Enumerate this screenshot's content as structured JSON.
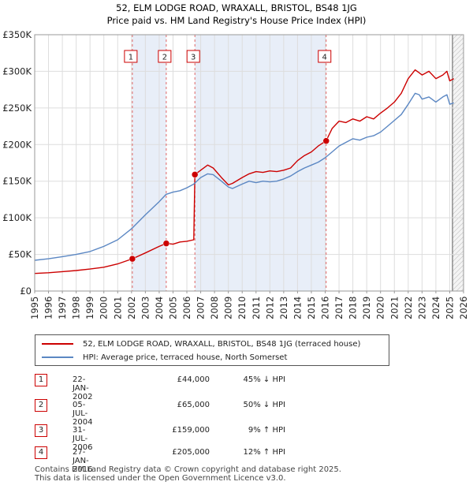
{
  "chart_data": {
    "type": "line",
    "title": "52, ELM LODGE ROAD, WRAXALL, BRISTOL, BS48 1JG",
    "subtitle": "Price paid vs. HM Land Registry's House Price Index (HPI)",
    "xlim": [
      1995,
      2026
    ],
    "ylim": [
      0,
      350000
    ],
    "y_ticks": [
      {
        "value": 0,
        "label": "£0"
      },
      {
        "value": 50000,
        "label": "£50K"
      },
      {
        "value": 100000,
        "label": "£100K"
      },
      {
        "value": 150000,
        "label": "£150K"
      },
      {
        "value": 200000,
        "label": "£200K"
      },
      {
        "value": 250000,
        "label": "£250K"
      },
      {
        "value": 300000,
        "label": "£300K"
      },
      {
        "value": 350000,
        "label": "£350K"
      }
    ],
    "x_ticks": [
      "1995",
      "1996",
      "1997",
      "1998",
      "1999",
      "2000",
      "2001",
      "2002",
      "2003",
      "2004",
      "2005",
      "2006",
      "2007",
      "2008",
      "2009",
      "2010",
      "2011",
      "2012",
      "2013",
      "2014",
      "2015",
      "2016",
      "2017",
      "2018",
      "2019",
      "2020",
      "2021",
      "2022",
      "2023",
      "2024",
      "2025",
      "2026"
    ],
    "shaded_periods": [
      [
        2002.06,
        2004.51
      ],
      [
        2006.58,
        2016.07
      ]
    ],
    "series": [
      {
        "name": "52, ELM LODGE ROAD, WRAXALL, BRISTOL, BS48 1JG (terraced house)",
        "color": "#cc0000",
        "x": [
          1995.0,
          1996.0,
          1997.0,
          1998.0,
          1999.0,
          2000.0,
          2001.0,
          2002.06,
          2003.0,
          2004.0,
          2004.51,
          2005.0,
          2005.5,
          2006.0,
          2006.5,
          2006.58,
          2007.0,
          2007.5,
          2007.9,
          2008.5,
          2009.0,
          2009.3,
          2010.0,
          2010.5,
          2011.0,
          2011.5,
          2012.0,
          2012.5,
          2013.0,
          2013.5,
          2014.0,
          2014.5,
          2015.0,
          2015.5,
          2016.07,
          2016.5,
          2017.0,
          2017.5,
          2018.0,
          2018.5,
          2019.0,
          2019.5,
          2020.0,
          2020.5,
          2021.0,
          2021.5,
          2022.0,
          2022.5,
          2022.8,
          2023.0,
          2023.5,
          2024.0,
          2024.5,
          2024.8,
          2025.0,
          2025.3
        ],
        "y": [
          24000,
          25000,
          26500,
          28000,
          30000,
          32500,
          37000,
          44000,
          52000,
          61000,
          65000,
          64000,
          67000,
          68000,
          70000,
          159000,
          165000,
          172000,
          168000,
          155000,
          145000,
          147000,
          155000,
          160000,
          163000,
          162000,
          164000,
          163000,
          165000,
          168000,
          178000,
          185000,
          190000,
          198000,
          205000,
          222000,
          232000,
          230000,
          235000,
          232000,
          238000,
          235000,
          243000,
          250000,
          258000,
          270000,
          290000,
          302000,
          298000,
          295000,
          300000,
          290000,
          295000,
          300000,
          287000,
          290000
        ]
      },
      {
        "name": "HPI: Average price, terraced house, North Somerset",
        "color": "#5b87c3",
        "x": [
          1995.0,
          1996.0,
          1997.0,
          1998.0,
          1999.0,
          2000.0,
          2001.0,
          2002.0,
          2003.0,
          2004.0,
          2004.5,
          2005.0,
          2005.5,
          2006.0,
          2006.5,
          2007.0,
          2007.5,
          2007.9,
          2008.5,
          2009.0,
          2009.3,
          2010.0,
          2010.5,
          2011.0,
          2011.5,
          2012.0,
          2012.5,
          2013.0,
          2013.5,
          2014.0,
          2014.5,
          2015.0,
          2015.5,
          2016.0,
          2016.5,
          2017.0,
          2017.5,
          2018.0,
          2018.5,
          2019.0,
          2019.5,
          2020.0,
          2020.5,
          2021.0,
          2021.5,
          2022.0,
          2022.5,
          2022.8,
          2023.0,
          2023.5,
          2024.0,
          2024.5,
          2024.8,
          2025.0,
          2025.3
        ],
        "y": [
          42000,
          44000,
          47000,
          50000,
          54000,
          61000,
          70000,
          85000,
          104000,
          122000,
          132000,
          135000,
          137000,
          141000,
          146000,
          155000,
          160000,
          159000,
          150000,
          142000,
          140000,
          146000,
          150000,
          148000,
          150000,
          149000,
          150000,
          153000,
          157000,
          163000,
          168000,
          172000,
          176000,
          182000,
          190000,
          198000,
          203000,
          208000,
          206000,
          210000,
          212000,
          217000,
          225000,
          233000,
          241000,
          255000,
          270000,
          268000,
          262000,
          265000,
          258000,
          265000,
          268000,
          255000,
          257000
        ]
      }
    ],
    "transactions": [
      {
        "num": "1",
        "date": "22-JAN-2002",
        "x": 2002.06,
        "price": "£44,000",
        "price_value": 44000,
        "hpi": "45% ↓ HPI"
      },
      {
        "num": "2",
        "date": "05-JUL-2004",
        "x": 2004.51,
        "price": "£65,000",
        "price_value": 65000,
        "hpi": "50% ↓ HPI"
      },
      {
        "num": "3",
        "date": "31-JUL-2006",
        "x": 2006.58,
        "price": "£159,000",
        "price_value": 159000,
        "hpi": "9% ↑ HPI"
      },
      {
        "num": "4",
        "date": "27-JAN-2016",
        "x": 2016.07,
        "price": "£205,000",
        "price_value": 205000,
        "hpi": "12% ↑ HPI"
      }
    ],
    "colors": {
      "price_paid": "#cc0000",
      "hpi": "#5b87c3",
      "shade": "#e8eef8",
      "grid": "#dddddd",
      "vline": "#e06666",
      "end_hatch": "#888888"
    }
  },
  "legend": {
    "price_label": "52, ELM LODGE ROAD, WRAXALL, BRISTOL, BS48 1JG (terraced house)",
    "hpi_label": "HPI: Average price, terraced house, North Somerset"
  },
  "footer": {
    "line1": "Contains HM Land Registry data © Crown copyright and database right 2025.",
    "line2": "This data is licensed under the Open Government Licence v3.0."
  }
}
